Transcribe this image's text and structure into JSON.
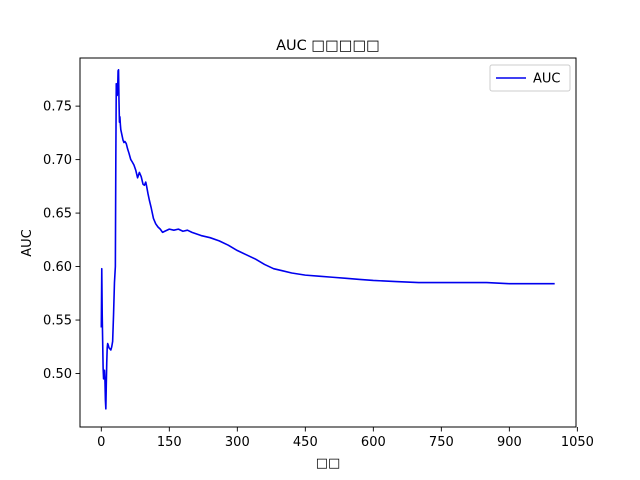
{
  "chart_data": {
    "type": "line",
    "title": "AUC □□□□□",
    "xlabel": "□□",
    "ylabel": "AUC",
    "xlim": [
      -47,
      1047
    ],
    "ylim": [
      0.45,
      0.795
    ],
    "xticks": [
      0,
      150,
      300,
      450,
      600,
      750,
      900,
      1050
    ],
    "yticks": [
      0.5,
      0.55,
      0.6,
      0.65,
      0.7,
      0.75
    ],
    "grid": false,
    "legend": "top-right",
    "colors": {
      "series": "#0000ee"
    },
    "series": [
      {
        "name": "AUC",
        "x": [
          0,
          1,
          2,
          3,
          4,
          5,
          6,
          7,
          8,
          9,
          10,
          11,
          12,
          13,
          14,
          15,
          17,
          19,
          21,
          23,
          25,
          27,
          29,
          31,
          32,
          33,
          34,
          35,
          36,
          37,
          38,
          39,
          40,
          41,
          42,
          43,
          44,
          46,
          48,
          50,
          52,
          55,
          58,
          61,
          65,
          68,
          72,
          76,
          80,
          84,
          88,
          92,
          95,
          98,
          100,
          103,
          106,
          110,
          115,
          120,
          125,
          130,
          135,
          140,
          150,
          160,
          170,
          180,
          190,
          200,
          220,
          240,
          260,
          280,
          300,
          320,
          340,
          360,
          380,
          400,
          420,
          450,
          480,
          510,
          540,
          570,
          600,
          650,
          700,
          750,
          800,
          850,
          900,
          950,
          1000
        ],
        "values": [
          0.543,
          0.598,
          0.555,
          0.53,
          0.505,
          0.495,
          0.497,
          0.503,
          0.494,
          0.475,
          0.467,
          0.49,
          0.51,
          0.524,
          0.528,
          0.527,
          0.524,
          0.523,
          0.522,
          0.525,
          0.53,
          0.555,
          0.585,
          0.6,
          0.7,
          0.771,
          0.77,
          0.76,
          0.765,
          0.783,
          0.784,
          0.755,
          0.735,
          0.74,
          0.733,
          0.728,
          0.726,
          0.722,
          0.718,
          0.716,
          0.717,
          0.715,
          0.71,
          0.706,
          0.7,
          0.698,
          0.695,
          0.69,
          0.683,
          0.688,
          0.684,
          0.677,
          0.676,
          0.679,
          0.675,
          0.668,
          0.662,
          0.655,
          0.645,
          0.64,
          0.637,
          0.635,
          0.632,
          0.633,
          0.635,
          0.634,
          0.635,
          0.633,
          0.634,
          0.632,
          0.629,
          0.627,
          0.624,
          0.62,
          0.615,
          0.611,
          0.607,
          0.602,
          0.598,
          0.596,
          0.594,
          0.592,
          0.591,
          0.59,
          0.589,
          0.588,
          0.587,
          0.586,
          0.585,
          0.585,
          0.585,
          0.585,
          0.584,
          0.584,
          0.584
        ]
      }
    ]
  }
}
